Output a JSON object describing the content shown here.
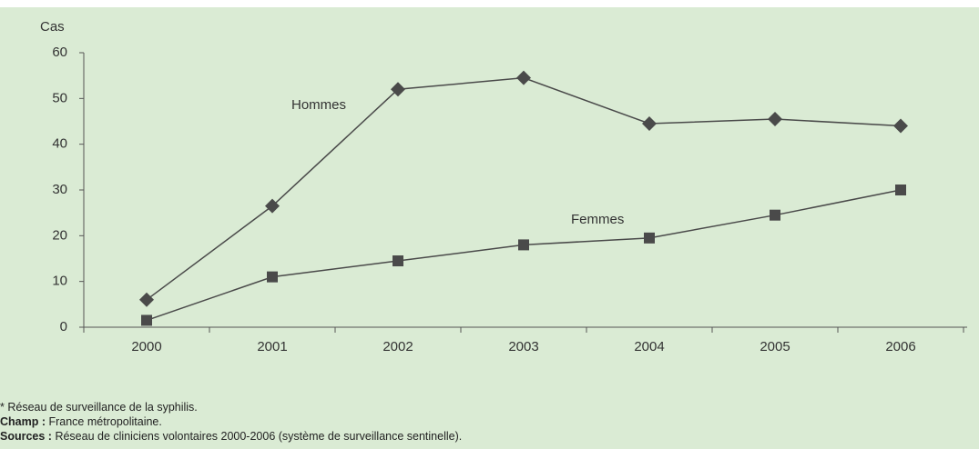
{
  "chart_data": {
    "type": "line",
    "y_label": "Cas",
    "categories": [
      "2000",
      "2001",
      "2002",
      "2003",
      "2004",
      "2005",
      "2006"
    ],
    "series": [
      {
        "name": "Hommes",
        "color": "#4a4a4a",
        "marker": "diamond",
        "values": [
          6,
          26.5,
          52,
          54.5,
          44.5,
          45.5,
          44
        ]
      },
      {
        "name": "Femmes",
        "color": "#4a4a4a",
        "marker": "square",
        "values": [
          1.5,
          11,
          14.5,
          18,
          19.5,
          24.5,
          30
        ]
      }
    ],
    "ylim": [
      0,
      60
    ],
    "yticks": [
      0,
      10,
      20,
      30,
      40,
      50,
      60
    ],
    "grid": false
  },
  "notes": [
    {
      "text": "* Réseau de surveillance de la syphilis."
    },
    {
      "label": "Champ :",
      "text": "France métropolitaine."
    },
    {
      "label": "Sources :",
      "text": "Réseau de cliniciens volontaires 2000-2006 (système de surveillance sentinelle)."
    }
  ]
}
